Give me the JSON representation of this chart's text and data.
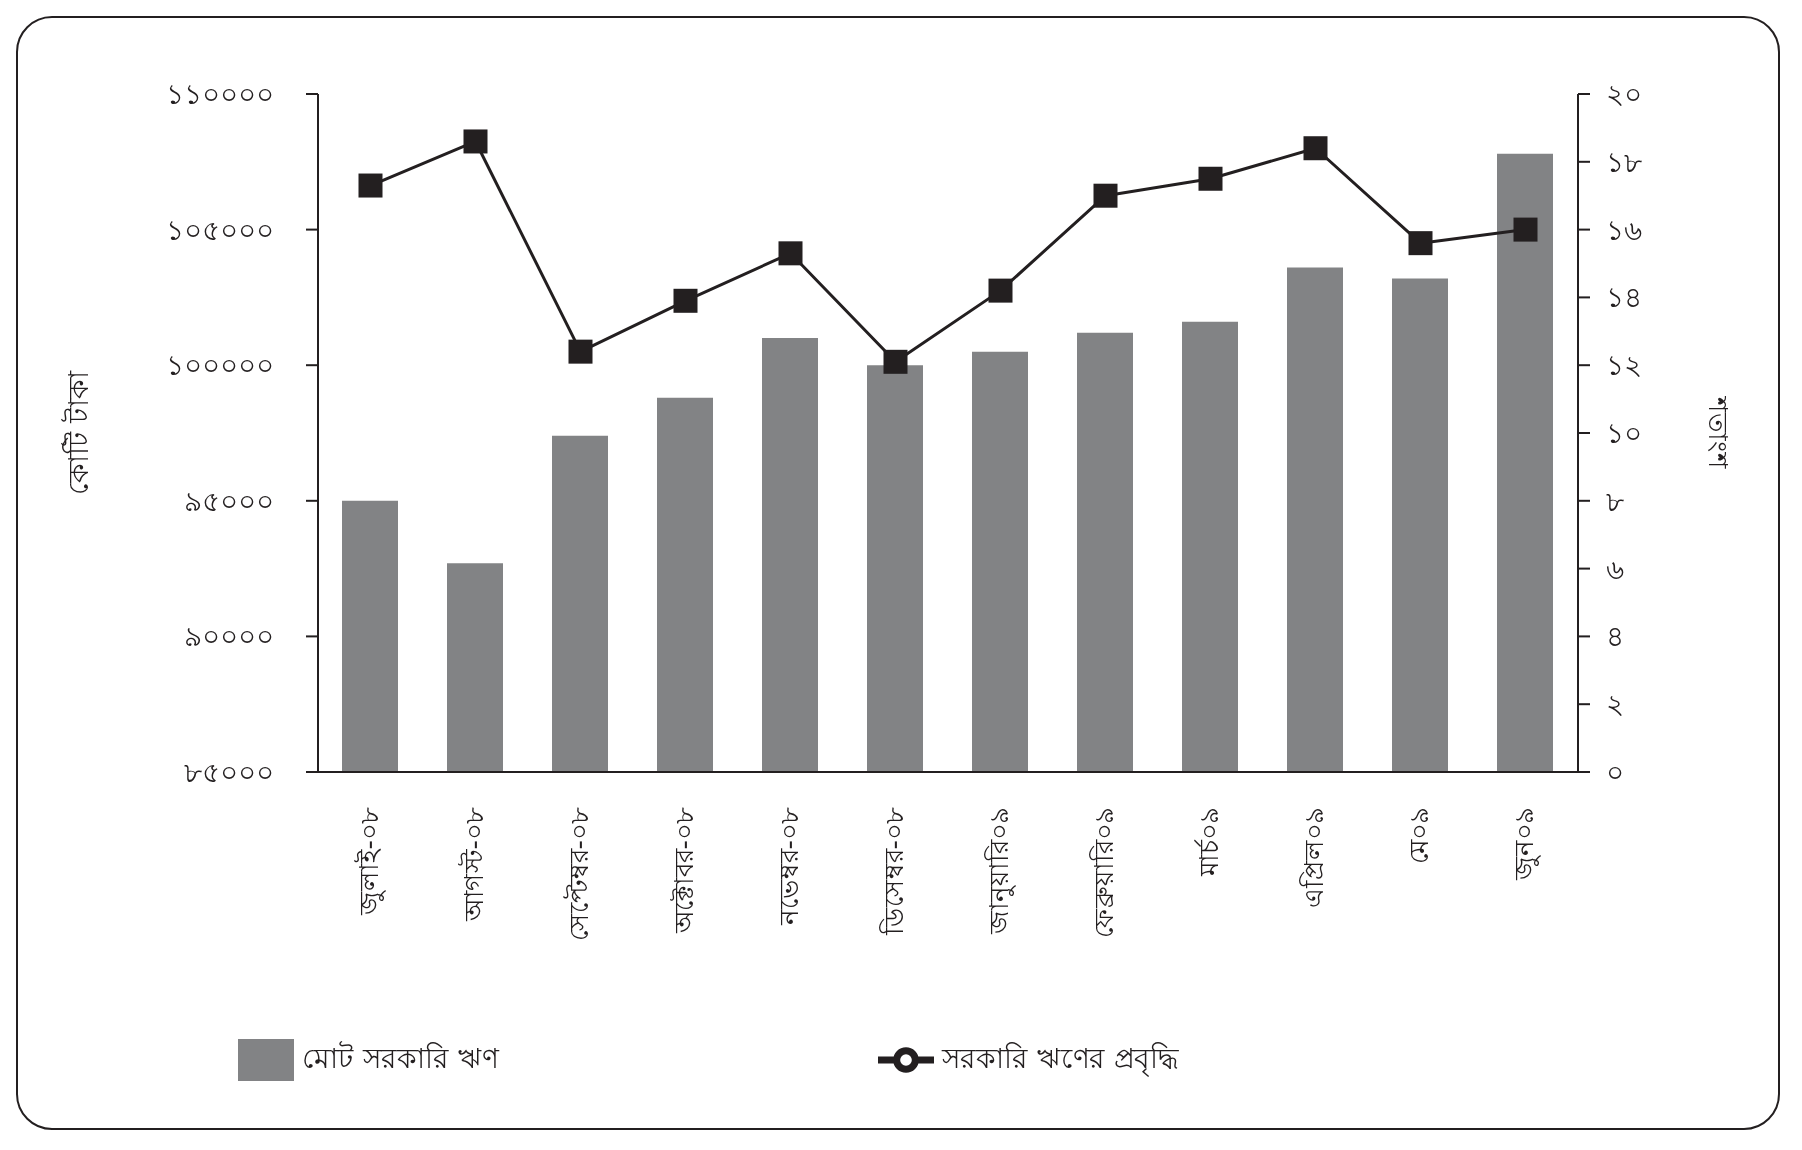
{
  "chart_data": {
    "type": "bar",
    "ylabel": "কোটি টাকা",
    "y2label": "শতাংশ",
    "categories": [
      "জুলাই-০৮",
      "আগস্ট-০৮",
      "সেপ্টেম্বর-০৮",
      "অক্টোবর-০৮",
      "নভেম্বর-০৮",
      "ডিসেম্বর-০৮",
      "জানুয়ারি০৯",
      "ফেব্রুয়ারি০৯",
      "মার্চ০৯",
      "এপ্রিল০৯",
      "মে০৯",
      "জুন০৯"
    ],
    "series": [
      {
        "name": "মোট সরকারি ঋণ",
        "color": "#828385",
        "values": [
          95000,
          92700,
          97400,
          98800,
          101000,
          100000,
          100500,
          101200,
          101600,
          103600,
          103200,
          107800
        ]
      },
      {
        "name": "সরকারি ঋণের প্রবৃদ্ধি",
        "type": "line",
        "axis": "y2",
        "color": "#231f20",
        "marker": "square",
        "values": [
          17.3,
          18.6,
          12.4,
          13.9,
          15.3,
          12.1,
          14.2,
          17.0,
          17.5,
          18.4,
          15.6,
          16.0
        ]
      }
    ],
    "ylim": [
      85000,
      110000
    ],
    "yticks": [
      {
        "value": 85000,
        "label": "৮৫০০০"
      },
      {
        "value": 90000,
        "label": "৯০০০০"
      },
      {
        "value": 95000,
        "label": "৯৫০০০"
      },
      {
        "value": 100000,
        "label": "১০০০০০"
      },
      {
        "value": 105000,
        "label": "১০৫০০০"
      },
      {
        "value": 110000,
        "label": "১১০০০০"
      }
    ],
    "y2lim": [
      0,
      20
    ],
    "y2ticks": [
      {
        "value": 0,
        "label": "০"
      },
      {
        "value": 2,
        "label": "২"
      },
      {
        "value": 4,
        "label": "৪"
      },
      {
        "value": 6,
        "label": "৬"
      },
      {
        "value": 8,
        "label": "৮"
      },
      {
        "value": 10,
        "label": "১০"
      },
      {
        "value": 12,
        "label": "১২"
      },
      {
        "value": 14,
        "label": "১৪"
      },
      {
        "value": 16,
        "label": "১৬"
      },
      {
        "value": 18,
        "label": "১৮"
      },
      {
        "value": 20,
        "label": "২০"
      }
    ],
    "grid": false,
    "legend": "bottom"
  }
}
